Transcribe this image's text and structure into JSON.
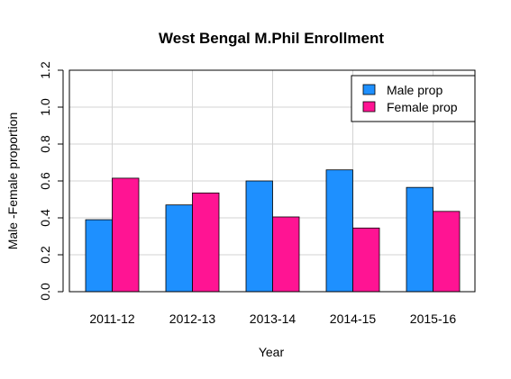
{
  "chart_data": {
    "type": "bar",
    "title": "West Bengal M.Phil Enrollment",
    "xlabel": "Year",
    "ylabel": "Male -Female proportion",
    "categories": [
      "2011-12",
      "2012-13",
      "2013-14",
      "2014-15",
      "2015-16"
    ],
    "series": [
      {
        "name": "Male prop",
        "values": [
          0.39,
          0.47,
          0.6,
          0.66,
          0.565
        ],
        "color": "#1e90ff"
      },
      {
        "name": "Female prop",
        "values": [
          0.615,
          0.535,
          0.405,
          0.345,
          0.435
        ],
        "color": "#ff1493"
      }
    ],
    "ylim": [
      0,
      1.2
    ],
    "yticks": [
      "0.0",
      "0.2",
      "0.4",
      "0.6",
      "0.8",
      "1.0",
      "1.2"
    ],
    "grid": true,
    "legend_position": "top-right"
  }
}
